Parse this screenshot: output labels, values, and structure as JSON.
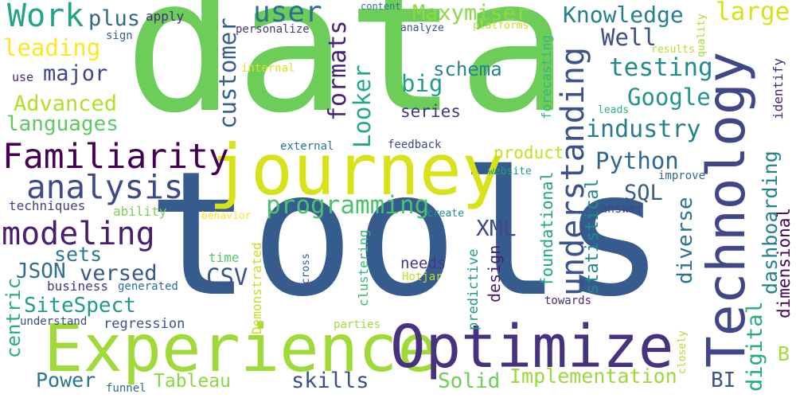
{
  "words": [
    {
      "text": "data",
      "color": "#6ccd59"
    },
    {
      "text": "tools",
      "color": "#365c8d"
    },
    {
      "text": "journey",
      "color": "#d8e219"
    },
    {
      "text": "Experience",
      "color": "#a0da39"
    },
    {
      "text": "Optimize",
      "color": "#46327e"
    },
    {
      "text": "Technology",
      "color": "#3f4788"
    },
    {
      "text": "understanding",
      "color": "#3b528b"
    },
    {
      "text": "Familiarity",
      "color": "#440154"
    },
    {
      "text": "analysis",
      "color": "#3e4a89"
    },
    {
      "text": "modeling",
      "color": "#481f70"
    },
    {
      "text": "user",
      "color": "#2c718e"
    },
    {
      "text": "Work",
      "color": "#21a585"
    },
    {
      "text": "Maxymiser",
      "color": "#8fd744"
    },
    {
      "text": "Knowledge",
      "color": "#287d8e"
    },
    {
      "text": "large",
      "color": "#d8e219"
    },
    {
      "text": "Well",
      "color": "#3d4e8a"
    },
    {
      "text": "testing",
      "color": "#228c8d"
    },
    {
      "text": "Google",
      "color": "#1f958b"
    },
    {
      "text": "industry",
      "color": "#277f8e"
    },
    {
      "text": "Python",
      "color": "#31678e"
    },
    {
      "text": "SQL",
      "color": "#375b8d"
    },
    {
      "text": "programming",
      "color": "#4ac16d"
    },
    {
      "text": "XML",
      "color": "#3e4989"
    },
    {
      "text": "customer",
      "color": "#355f8d"
    },
    {
      "text": "formats",
      "color": "#482173"
    },
    {
      "text": "Looker",
      "color": "#22a884"
    },
    {
      "text": "big",
      "color": "#1f9e89"
    },
    {
      "text": "schema",
      "color": "#25848e"
    },
    {
      "text": "series",
      "color": "#443a83"
    },
    {
      "text": "leading",
      "color": "#fde725"
    },
    {
      "text": "plus",
      "color": "#31688e"
    },
    {
      "text": "major",
      "color": "#414487"
    },
    {
      "text": "Advanced",
      "color": "#b5de2b"
    },
    {
      "text": "languages",
      "color": "#5ec962"
    },
    {
      "text": "apply",
      "color": "#472d7b"
    },
    {
      "text": "sign",
      "color": "#355f8d"
    },
    {
      "text": "use",
      "color": "#482878"
    },
    {
      "text": "personalize",
      "color": "#453781"
    },
    {
      "text": "analyze",
      "color": "#3b528b"
    },
    {
      "text": "content",
      "color": "#2a788e"
    },
    {
      "text": "platforms",
      "color": "#c2df23"
    },
    {
      "text": "internal",
      "color": "#dde318"
    },
    {
      "text": "results",
      "color": "#b8de29"
    },
    {
      "text": "quality",
      "color": "#a8db34"
    },
    {
      "text": "forecasting",
      "color": "#35b779"
    },
    {
      "text": "identify",
      "color": "#482576"
    },
    {
      "text": "leads",
      "color": "#2db27d"
    },
    {
      "text": "digital",
      "color": "#25ab82"
    },
    {
      "text": "dashboarding",
      "color": "#26828e"
    },
    {
      "text": "dimensional",
      "color": "#440154"
    },
    {
      "text": "diverse",
      "color": "#2c728e"
    },
    {
      "text": "statistical",
      "color": "#24868e"
    },
    {
      "text": "foundational",
      "color": "#20a386"
    },
    {
      "text": "product",
      "color": "#c8e020"
    },
    {
      "text": "website",
      "color": "#1f9a8a"
    },
    {
      "text": "improve",
      "color": "#31688e"
    },
    {
      "text": "answer",
      "color": "#414487"
    },
    {
      "text": "create",
      "color": "#21918c"
    },
    {
      "text": "external",
      "color": "#2a788e"
    },
    {
      "text": "feedback",
      "color": "#404688"
    },
    {
      "text": "techniques",
      "color": "#433e85"
    },
    {
      "text": "ability",
      "color": "#7ad151"
    },
    {
      "text": "behavior",
      "color": "#fde725"
    },
    {
      "text": "sets",
      "color": "#2a788e"
    },
    {
      "text": "JSON",
      "color": "#2e6e8e"
    },
    {
      "text": "versed",
      "color": "#38588c"
    },
    {
      "text": "CSV",
      "color": "#3a548c"
    },
    {
      "text": "time",
      "color": "#54c568"
    },
    {
      "text": "needs",
      "color": "#453781"
    },
    {
      "text": "Hotjar",
      "color": "#c0df25"
    },
    {
      "text": "business",
      "color": "#443983"
    },
    {
      "text": "generated",
      "color": "#2d708e"
    },
    {
      "text": "SiteSpect",
      "color": "#1e9b8a"
    },
    {
      "text": "centric",
      "color": "#26ad81"
    },
    {
      "text": "understand",
      "color": "#3e4a89"
    },
    {
      "text": "regression",
      "color": "#3b528b"
    },
    {
      "text": "parties",
      "color": "#a2da37"
    },
    {
      "text": "towards",
      "color": "#472a7a"
    },
    {
      "text": "Demonstrated",
      "color": "#c5e021"
    },
    {
      "text": "across",
      "color": "#38598c"
    },
    {
      "text": "clustering",
      "color": "#35b779"
    },
    {
      "text": "predictive",
      "color": "#1f998a"
    },
    {
      "text": "design",
      "color": "#481b6d"
    },
    {
      "text": "closely",
      "color": "#b2dd2d"
    },
    {
      "text": "B",
      "color": "#a5db36"
    },
    {
      "text": "Power",
      "color": "#2a768e"
    },
    {
      "text": "Tableau",
      "color": "#8bd646"
    },
    {
      "text": "skills",
      "color": "#3c4f8a"
    },
    {
      "text": "Solid",
      "color": "#6ece58"
    },
    {
      "text": "Implementation",
      "color": "#9bd93c"
    },
    {
      "text": "BI",
      "color": "#3b528b"
    },
    {
      "text": "funnel",
      "color": "#2e6f8e"
    }
  ]
}
